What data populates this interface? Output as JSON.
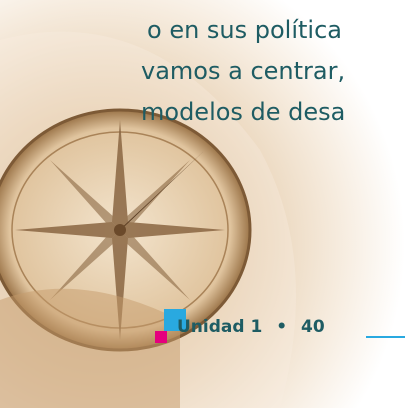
{
  "body": {
    "lines": [
      "o en sus  política",
      "vamos a centrar,",
      "modelos de desa"
    ]
  },
  "footer": {
    "unit": "Unidad 1",
    "separator": "•",
    "page": "40"
  }
}
